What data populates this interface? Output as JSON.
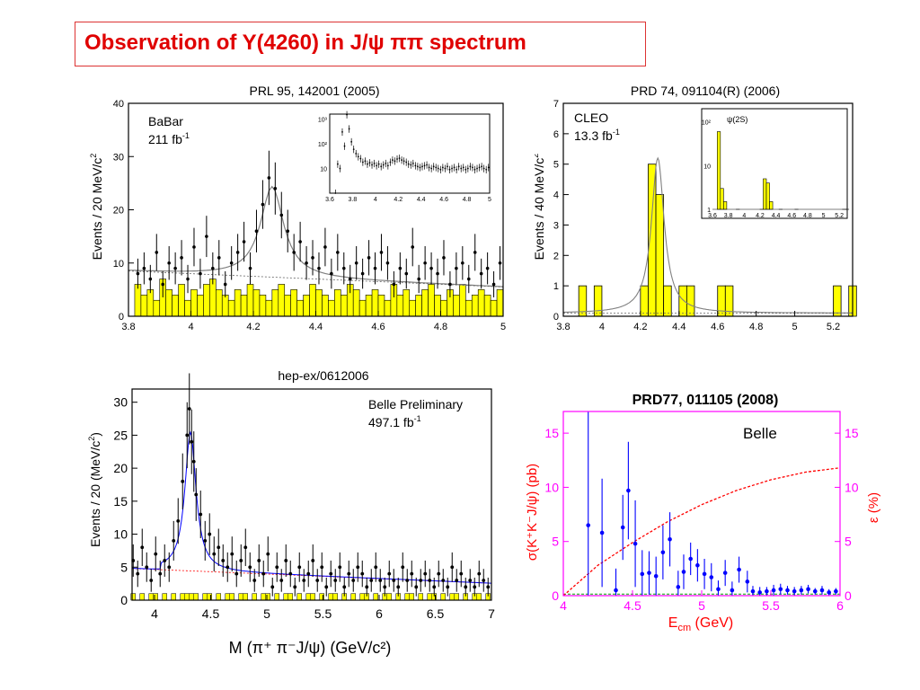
{
  "slide": {
    "title": "Observation of Y(4260) in J/ψ ππ spectrum"
  },
  "chart_data": [
    {
      "type": "bar",
      "title": "PRL 95, 142001 (2005)",
      "experiment": "BaBar",
      "luminosity": "211 fb",
      "luminosity_sup": "-1",
      "xlabel": "",
      "ylabel": "Events / 20 MeV/c",
      "ylabel_sup": "2",
      "xlim": [
        3.8,
        5.0
      ],
      "ylim": [
        0,
        40
      ],
      "xticks": [
        "3.8",
        "4",
        "4.2",
        "4.4",
        "4.6",
        "4.8",
        "5"
      ],
      "yticks": [
        "0",
        "10",
        "20",
        "30",
        "40"
      ],
      "colors": {
        "background_hist": "#ffff00",
        "fit": "#808080",
        "data": "#000000"
      },
      "x": [
        3.83,
        3.85,
        3.87,
        3.89,
        3.91,
        3.93,
        3.95,
        3.97,
        3.99,
        4.01,
        4.03,
        4.05,
        4.07,
        4.09,
        4.11,
        4.13,
        4.15,
        4.17,
        4.19,
        4.21,
        4.23,
        4.25,
        4.27,
        4.29,
        4.31,
        4.33,
        4.35,
        4.37,
        4.39,
        4.41,
        4.43,
        4.45,
        4.47,
        4.49,
        4.51,
        4.53,
        4.55,
        4.57,
        4.59,
        4.61,
        4.63,
        4.65,
        4.67,
        4.69,
        4.71,
        4.73,
        4.75,
        4.77,
        4.79,
        4.81,
        4.83,
        4.85,
        4.87,
        4.89,
        4.91,
        4.93,
        4.95,
        4.97,
        4.99
      ],
      "values": [
        8,
        9,
        7,
        12,
        6,
        10,
        9,
        11,
        7,
        13,
        8,
        15,
        9,
        11,
        6,
        10,
        12,
        14,
        9,
        16,
        21,
        26,
        24,
        19,
        16,
        12,
        14,
        10,
        11,
        9,
        13,
        8,
        12,
        9,
        7,
        10,
        8,
        11,
        9,
        12,
        10,
        6,
        9,
        8,
        13,
        7,
        10,
        9,
        8,
        11,
        6,
        9,
        10,
        7,
        12,
        8,
        9,
        6,
        10
      ],
      "background_values": [
        6,
        4,
        5,
        3,
        7,
        5,
        4,
        6,
        3,
        5,
        4,
        6,
        7,
        5,
        4,
        3,
        5,
        4,
        6,
        5,
        4,
        3,
        5,
        6,
        4,
        5,
        3,
        4,
        6,
        5,
        4,
        3,
        5,
        4,
        6,
        5,
        3,
        4,
        5,
        4,
        3,
        6,
        4,
        5,
        3,
        4,
        5,
        6,
        4,
        3,
        5,
        4,
        6,
        3,
        4,
        5,
        4,
        3,
        5
      ],
      "inset": {
        "type": "scatter",
        "xlim": [
          3.6,
          5.0
        ],
        "ylim_log": [
          1,
          3.2
        ],
        "xticks": [
          "3.6",
          "3.8",
          "4",
          "4.2",
          "4.4",
          "4.6",
          "4.8",
          "5"
        ],
        "yticks": [
          "10",
          "10²",
          "10³"
        ],
        "x": [
          3.65,
          3.67,
          3.69,
          3.71,
          3.73,
          3.75,
          3.77,
          3.79,
          3.81,
          3.83,
          3.85,
          3.87,
          3.89,
          3.91,
          3.93,
          3.95,
          3.97,
          3.99,
          4.01,
          4.03,
          4.05,
          4.07,
          4.09,
          4.11,
          4.13,
          4.15,
          4.17,
          4.19,
          4.21,
          4.23,
          4.25,
          4.27,
          4.29,
          4.31,
          4.33,
          4.35,
          4.37,
          4.39,
          4.41,
          4.43,
          4.45,
          4.47,
          4.49,
          4.51,
          4.53,
          4.55,
          4.57,
          4.59,
          4.61,
          4.63,
          4.65,
          4.67,
          4.69,
          4.71,
          4.73,
          4.75,
          4.77,
          4.79,
          4.81,
          4.83,
          4.85,
          4.87,
          4.89,
          4.91,
          4.93,
          4.95,
          4.97,
          4.99
        ],
        "values": [
          1,
          15,
          10,
          300,
          80,
          1500,
          400,
          120,
          60,
          40,
          30,
          25,
          18,
          20,
          15,
          17,
          14,
          16,
          13,
          15,
          12,
          14,
          16,
          13,
          18,
          22,
          20,
          24,
          26,
          22,
          20,
          18,
          15,
          14,
          16,
          13,
          12,
          11,
          12,
          13,
          14,
          11,
          10,
          12,
          11,
          10,
          9,
          11,
          10,
          12,
          9,
          10,
          11,
          9,
          12,
          10,
          11,
          9,
          10,
          12,
          11,
          9,
          10,
          11,
          12,
          10,
          9,
          11
        ]
      }
    },
    {
      "type": "bar",
      "title": "PRD 74, 091104(R) (2006)",
      "experiment": "CLEO",
      "luminosity": "13.3 fb",
      "luminosity_sup": "-1",
      "ylabel": "Events / 40 MeV/c",
      "ylabel_sup": "2",
      "xlim": [
        3.8,
        5.3
      ],
      "ylim": [
        0,
        7
      ],
      "xticks": [
        "3.8",
        "4",
        "4.2",
        "4.4",
        "4.6",
        "4.8",
        "5",
        "5.2"
      ],
      "yticks": [
        "0",
        "1",
        "2",
        "3",
        "4",
        "5",
        "6",
        "7"
      ],
      "colors": {
        "hist": "#ffff00",
        "fit": "#808080"
      },
      "bins": [
        [
          3.88,
          3.92,
          1
        ],
        [
          3.96,
          4.0,
          1
        ],
        [
          4.2,
          4.24,
          1
        ],
        [
          4.24,
          4.28,
          5
        ],
        [
          4.28,
          4.32,
          4
        ],
        [
          4.32,
          4.36,
          1
        ],
        [
          4.4,
          4.44,
          1
        ],
        [
          4.44,
          4.48,
          1
        ],
        [
          4.6,
          4.64,
          1
        ],
        [
          4.64,
          4.68,
          1
        ],
        [
          5.2,
          5.24,
          1
        ],
        [
          5.28,
          5.32,
          1
        ]
      ],
      "inset": {
        "type": "bar",
        "label": "ψ(2S)",
        "xlim": [
          3.6,
          5.3
        ],
        "xticks": [
          "3.6",
          "3.8",
          "4",
          "4.2",
          "4.4",
          "4.6",
          "4.8",
          "5",
          "5.2"
        ],
        "yticks": [
          "1",
          "10",
          "10²"
        ],
        "bins": [
          [
            3.66,
            3.7,
            60
          ],
          [
            3.7,
            3.74,
            3
          ],
          [
            3.74,
            3.78,
            1.5
          ],
          [
            3.9,
            3.94,
            1
          ],
          [
            4.2,
            4.24,
            1
          ],
          [
            4.24,
            4.28,
            5
          ],
          [
            4.28,
            4.32,
            4
          ],
          [
            4.32,
            4.36,
            1.5
          ],
          [
            4.44,
            4.48,
            1
          ],
          [
            4.64,
            4.68,
            1
          ],
          [
            5.24,
            5.28,
            1
          ],
          [
            5.28,
            5.32,
            1
          ]
        ]
      }
    },
    {
      "type": "bar",
      "title": "hep-ex/0612006",
      "experiment": "Belle Preliminary",
      "luminosity": "497.1 fb",
      "luminosity_sup": "-1",
      "xlabel": "M (π⁺ π⁻J/ψ) (GeV/c²)",
      "ylabel": "Events / 20 (MeV/c",
      "ylabel_sup": "2",
      "ylabel_end": ")",
      "xlim": [
        3.8,
        7.0
      ],
      "ylim": [
        0,
        32
      ],
      "xticks": [
        "4",
        "4.5",
        "5",
        "5.5",
        "6",
        "6.5",
        "7"
      ],
      "yticks": [
        "0",
        "5",
        "10",
        "15",
        "20",
        "25",
        "30"
      ],
      "colors": {
        "hist": "#ffff00",
        "fit": "#0000ff",
        "background_fit": "#ff0000"
      },
      "x": [
        3.81,
        3.85,
        3.89,
        3.93,
        3.97,
        4.01,
        4.05,
        4.09,
        4.13,
        4.17,
        4.21,
        4.25,
        4.29,
        4.31,
        4.33,
        4.35,
        4.37,
        4.41,
        4.45,
        4.49,
        4.53,
        4.57,
        4.61,
        4.65,
        4.69,
        4.73,
        4.77,
        4.81,
        4.85,
        4.89,
        4.93,
        4.97,
        5.01,
        5.05,
        5.09,
        5.13,
        5.17,
        5.21,
        5.25,
        5.29,
        5.33,
        5.37,
        5.41,
        5.45,
        5.49,
        5.53,
        5.57,
        5.61,
        5.65,
        5.69,
        5.73,
        5.77,
        5.81,
        5.85,
        5.89,
        5.93,
        5.97,
        6.01,
        6.05,
        6.09,
        6.13,
        6.17,
        6.21,
        6.25,
        6.29,
        6.33,
        6.37,
        6.41,
        6.45,
        6.49,
        6.53,
        6.57,
        6.61,
        6.65,
        6.69,
        6.73,
        6.77,
        6.81,
        6.85,
        6.89,
        6.93,
        6.97
      ],
      "values": [
        6,
        4,
        8,
        5,
        3,
        7,
        4,
        6,
        5,
        9,
        12,
        18,
        25,
        29,
        24,
        21,
        16,
        13,
        9,
        10,
        7,
        8,
        6,
        5,
        7,
        4,
        6,
        8,
        5,
        3,
        6,
        4,
        7,
        2,
        5,
        3,
        6,
        4,
        2,
        5,
        3,
        4,
        6,
        3,
        5,
        2,
        4,
        3,
        5,
        2,
        4,
        3,
        5,
        4,
        2,
        3,
        5,
        3,
        2,
        4,
        3,
        2,
        5,
        3,
        4,
        2,
        3,
        4,
        3,
        2,
        4,
        3,
        2,
        5,
        3,
        4,
        2,
        3,
        2,
        4,
        3,
        2
      ],
      "background_values": [
        1,
        0,
        1,
        0,
        1,
        1,
        0,
        1,
        0,
        1,
        0,
        1,
        1,
        0,
        1,
        0,
        1,
        0,
        1,
        1,
        0,
        1,
        0,
        1,
        1,
        0,
        1,
        1,
        0,
        1,
        0,
        1,
        1,
        0,
        1,
        0,
        1,
        1,
        0,
        1,
        0,
        1,
        1,
        0,
        1,
        0,
        1,
        1,
        0,
        1,
        0,
        1,
        0,
        1,
        1,
        0,
        1,
        0,
        1,
        1,
        0,
        1,
        0,
        1,
        1,
        0,
        1,
        0,
        1,
        1,
        0,
        1,
        0,
        1,
        1,
        0,
        1,
        0,
        1,
        1,
        0,
        1
      ]
    },
    {
      "type": "scatter",
      "title": "PRD77, 011105 (2008)",
      "experiment": "Belle",
      "xlabel": "E",
      "xlabel_sub": "cm",
      "xlabel_end": " (GeV)",
      "ylabel": "σ(K⁺K⁻J/ψ) (pb)",
      "ylabel_right": "ε (%)",
      "xlim": [
        4.0,
        6.0
      ],
      "ylim": [
        0,
        17
      ],
      "xticks": [
        "4",
        "4.5",
        "5",
        "5.5",
        "6"
      ],
      "yticks": [
        "0",
        "5",
        "10",
        "15"
      ],
      "yticks_right": [
        "0",
        "5",
        "10",
        "15"
      ],
      "colors": {
        "frame": "#ff00ff",
        "points": "#0000ff",
        "efficiency": "#ff0000",
        "zero_line": "#00aa00"
      },
      "x": [
        4.18,
        4.28,
        4.38,
        4.43,
        4.47,
        4.52,
        4.57,
        4.62,
        4.67,
        4.72,
        4.77,
        4.83,
        4.87,
        4.92,
        4.97,
        5.02,
        5.07,
        5.12,
        5.17,
        5.22,
        5.27,
        5.33,
        5.37,
        5.42,
        5.47,
        5.52,
        5.57,
        5.62,
        5.67,
        5.72,
        5.77,
        5.82,
        5.87,
        5.92,
        5.97
      ],
      "values": [
        6.5,
        5.8,
        0.5,
        6.3,
        9.7,
        4.8,
        2.0,
        2.1,
        1.8,
        4.0,
        5.2,
        0.8,
        2.2,
        3.4,
        2.8,
        2.0,
        1.7,
        0.6,
        2.1,
        0.5,
        2.4,
        1.3,
        0.4,
        0.3,
        0.4,
        0.5,
        0.6,
        0.5,
        0.4,
        0.5,
        0.6,
        0.4,
        0.5,
        0.3,
        0.4
      ],
      "errors": [
        11,
        5,
        2,
        3,
        4.5,
        4,
        2.2,
        2,
        1.8,
        2.5,
        2.5,
        1.5,
        1.6,
        1.5,
        1.5,
        1.4,
        1.3,
        0.8,
        1.2,
        0.8,
        1.2,
        1,
        0.5,
        0.5,
        0.4,
        0.5,
        0.5,
        0.4,
        0.4,
        0.4,
        0.4,
        0.3,
        0.4,
        0.3,
        0.3
      ],
      "efficiency_x": [
        4.0,
        4.25,
        4.5,
        4.75,
        5.0,
        5.25,
        5.5,
        5.75,
        6.0
      ],
      "efficiency_values": [
        0,
        2.8,
        4.9,
        6.8,
        8.4,
        9.7,
        10.7,
        11.4,
        11.8
      ]
    }
  ]
}
